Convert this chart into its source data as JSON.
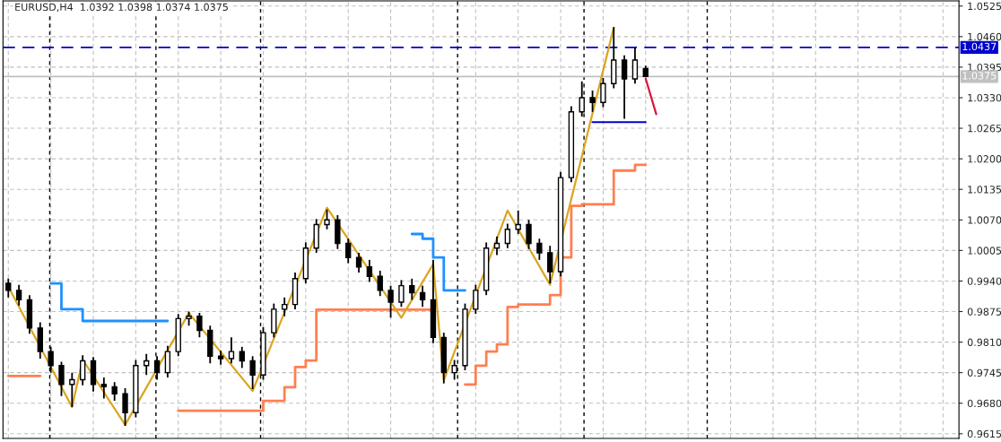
{
  "chart_data": {
    "type": "candlestick",
    "title": "EURUSD,H4  1.0392 1.0398 1.0374 1.0375",
    "categories": [
      null,
      null,
      null,
      null,
      null,
      null,
      null,
      null,
      null,
      null,
      null,
      null,
      null,
      null,
      null,
      null,
      null,
      null,
      null,
      null,
      null,
      null,
      null,
      null,
      null,
      null,
      null,
      null,
      null,
      null,
      null,
      null,
      null,
      null,
      null,
      null,
      null,
      null,
      null,
      null,
      null,
      null,
      null,
      null,
      null,
      null,
      null,
      null,
      null,
      null,
      null,
      null,
      null,
      null,
      null,
      null,
      null,
      null,
      null,
      null,
      null,
      null,
      null,
      null,
      null,
      null,
      null,
      null,
      null,
      null,
      null,
      null,
      null,
      null,
      null,
      null,
      null,
      null,
      null,
      null,
      null,
      null,
      null,
      null,
      null,
      null,
      null,
      null,
      null,
      null
    ],
    "ohlc": [
      [
        0.9935,
        0.9945,
        0.9905,
        0.992
      ],
      [
        0.992,
        0.9932,
        0.9888,
        0.99
      ],
      [
        0.99,
        0.991,
        0.9828,
        0.984
      ],
      [
        0.984,
        0.9852,
        0.9775,
        0.979
      ],
      [
        0.979,
        0.98,
        0.9745,
        0.976
      ],
      [
        0.976,
        0.9768,
        0.9695,
        0.972
      ],
      [
        0.972,
        0.9745,
        0.9672,
        0.973
      ],
      [
        0.973,
        0.9782,
        0.9718,
        0.977
      ],
      [
        0.977,
        0.9778,
        0.9705,
        0.972
      ],
      [
        0.972,
        0.9735,
        0.969,
        0.9715
      ],
      [
        0.9715,
        0.9725,
        0.9685,
        0.97
      ],
      [
        0.97,
        0.9712,
        0.9632,
        0.966
      ],
      [
        0.966,
        0.9772,
        0.965,
        0.976
      ],
      [
        0.976,
        0.9785,
        0.974,
        0.977
      ],
      [
        0.977,
        0.978,
        0.973,
        0.9745
      ],
      [
        0.9745,
        0.9802,
        0.9735,
        0.979
      ],
      [
        0.979,
        0.987,
        0.978,
        0.986
      ],
      [
        0.986,
        0.9875,
        0.9845,
        0.9865
      ],
      [
        0.9865,
        0.9872,
        0.982,
        0.9835
      ],
      [
        0.9835,
        0.9845,
        0.9765,
        0.978
      ],
      [
        0.978,
        0.9792,
        0.9762,
        0.9775
      ],
      [
        0.9775,
        0.982,
        0.9765,
        0.979
      ],
      [
        0.979,
        0.98,
        0.9755,
        0.977
      ],
      [
        0.977,
        0.978,
        0.971,
        0.974
      ],
      [
        0.974,
        0.9842,
        0.973,
        0.983
      ],
      [
        0.983,
        0.9892,
        0.982,
        0.988
      ],
      [
        0.988,
        0.9905,
        0.9865,
        0.989
      ],
      [
        0.989,
        0.9958,
        0.988,
        0.9945
      ],
      [
        0.9945,
        1.0022,
        0.9935,
        1.001
      ],
      [
        1.001,
        1.0072,
        1.0,
        1.006
      ],
      [
        1.006,
        1.0092,
        1.005,
        1.007
      ],
      [
        1.007,
        1.008,
        1.0008,
        1.002
      ],
      [
        1.002,
        1.003,
        0.9978,
        0.999
      ],
      [
        0.999,
        1.0,
        0.9958,
        0.997
      ],
      [
        0.997,
        0.9985,
        0.9938,
        0.995
      ],
      [
        0.995,
        0.9962,
        0.9908,
        0.992
      ],
      [
        0.992,
        0.993,
        0.9862,
        0.9895
      ],
      [
        0.9895,
        0.9942,
        0.9885,
        0.993
      ],
      [
        0.993,
        0.9945,
        0.99,
        0.9915
      ],
      [
        0.9915,
        0.993,
        0.9885,
        0.99
      ],
      [
        0.99,
        0.9985,
        0.9808,
        0.982
      ],
      [
        0.982,
        0.983,
        0.9722,
        0.9745
      ],
      [
        0.9745,
        0.9772,
        0.973,
        0.976
      ],
      [
        0.976,
        0.9892,
        0.975,
        0.988
      ],
      [
        0.988,
        0.9932,
        0.987,
        0.992
      ],
      [
        0.992,
        1.0022,
        0.991,
        1.001
      ],
      [
        1.001,
        1.0035,
        0.9995,
        1.002
      ],
      [
        1.002,
        1.0062,
        1.001,
        1.005
      ],
      [
        1.005,
        1.009,
        1.004,
        1.006
      ],
      [
        1.006,
        1.007,
        1.0008,
        1.002
      ],
      [
        1.002,
        1.003,
        0.9985,
        1.0
      ],
      [
        1.0,
        1.0015,
        0.9935,
        0.996
      ],
      [
        0.996,
        1.0172,
        0.995,
        1.016
      ],
      [
        1.016,
        1.0312,
        1.015,
        1.03
      ],
      [
        1.03,
        1.0365,
        1.029,
        1.033
      ],
      [
        1.033,
        1.0345,
        1.03,
        1.032
      ],
      [
        1.032,
        1.0372,
        1.031,
        1.036
      ],
      [
        1.036,
        1.048,
        1.035,
        1.041
      ],
      [
        1.041,
        1.042,
        1.0285,
        1.037
      ],
      [
        1.037,
        1.0437,
        1.036,
        1.041
      ],
      [
        1.0392,
        1.0398,
        1.0374,
        1.0375
      ],
      null,
      null,
      null,
      null,
      null,
      null,
      null,
      null,
      null,
      null,
      null,
      null,
      null,
      null,
      null,
      null,
      null,
      null,
      null,
      null,
      null,
      null,
      null,
      null,
      null,
      null,
      null,
      null,
      null
    ],
    "series": [
      {
        "type": "step",
        "color": "#1e90ff",
        "values": [
          null,
          null,
          null,
          null,
          0.9935,
          0.988,
          0.988,
          0.9855,
          0.9855,
          0.9855,
          0.9855,
          0.9855,
          0.9855,
          0.9855,
          0.9855,
          0.9855,
          null,
          null,
          null,
          null,
          null,
          null,
          null,
          null,
          null,
          null,
          null,
          null,
          null,
          null,
          null,
          null,
          null,
          null,
          null,
          null,
          null,
          null,
          null,
          null,
          null,
          null,
          null,
          null,
          null,
          null,
          null,
          null,
          null,
          null,
          null,
          null,
          null,
          null,
          null,
          null,
          null,
          null,
          null,
          null,
          null,
          null,
          null,
          null,
          null,
          null,
          null,
          null,
          null,
          null,
          null,
          null,
          null,
          null,
          null,
          null,
          null,
          null,
          null,
          null,
          null,
          null,
          null,
          null,
          null,
          null,
          null,
          null,
          null,
          null
        ]
      },
      {
        "type": "step",
        "color": "#1e90ff",
        "values": [
          null,
          null,
          null,
          null,
          null,
          null,
          null,
          null,
          null,
          null,
          null,
          null,
          null,
          null,
          null,
          null,
          null,
          null,
          null,
          null,
          null,
          null,
          null,
          null,
          null,
          null,
          null,
          null,
          null,
          null,
          null,
          null,
          null,
          null,
          null,
          null,
          null,
          null,
          1.004,
          1.003,
          0.999,
          0.992,
          0.992,
          0.992,
          null,
          null,
          null,
          null,
          null,
          null,
          null,
          null,
          null,
          null,
          null,
          null,
          null,
          null,
          null,
          null,
          null,
          null,
          null,
          null,
          null,
          null,
          null,
          null,
          null,
          null,
          null,
          null,
          null,
          null,
          null,
          null,
          null,
          null,
          null,
          null,
          null,
          null,
          null,
          null,
          null,
          null,
          null,
          null,
          null,
          null
        ]
      },
      {
        "type": "step",
        "color": "#ff7f50",
        "values": [
          0.9738,
          0.9738,
          0.9738,
          0.9738,
          null,
          null,
          null,
          null,
          null,
          null,
          null,
          null,
          null,
          null,
          null,
          null,
          null,
          null,
          null,
          null,
          null,
          null,
          null,
          null,
          null,
          null,
          null,
          null,
          null,
          null,
          null,
          null,
          null,
          null,
          null,
          null,
          null,
          null,
          null,
          null,
          null,
          null,
          null,
          null,
          null,
          null,
          null,
          null,
          null,
          null,
          null,
          null,
          null,
          null,
          null,
          null,
          null,
          null,
          null,
          null,
          null,
          null,
          null,
          null,
          null,
          null,
          null,
          null,
          null,
          null,
          null,
          null,
          null,
          null,
          null,
          null,
          null,
          null,
          null,
          null,
          null,
          null,
          null,
          null,
          null,
          null,
          null,
          null,
          null,
          null
        ]
      },
      {
        "type": "step",
        "color": "#ff7f50",
        "values": [
          null,
          null,
          null,
          null,
          null,
          null,
          null,
          null,
          null,
          null,
          null,
          null,
          null,
          null,
          null,
          null,
          0.9664,
          0.9664,
          0.9664,
          0.9664,
          0.9664,
          0.9664,
          0.9664,
          0.9664,
          0.9685,
          0.9685,
          0.9714,
          0.9757,
          0.9771,
          0.9879,
          0.9879,
          0.9879,
          0.9879,
          0.9879,
          0.9879,
          0.9879,
          0.9879,
          0.9879,
          0.9879,
          0.9879,
          0.9879,
          null,
          null,
          null,
          null,
          null,
          null,
          null,
          null,
          null,
          null,
          null,
          null,
          null,
          null,
          null,
          null,
          null,
          null,
          null,
          null,
          null,
          null,
          null,
          null,
          null,
          null,
          null,
          null,
          null,
          null,
          null,
          null,
          null,
          null,
          null,
          null,
          null,
          null,
          null,
          null,
          null,
          null,
          null,
          null,
          null,
          null,
          null,
          null,
          null
        ]
      },
      {
        "type": "step",
        "color": "#ff7f50",
        "values": [
          null,
          null,
          null,
          null,
          null,
          null,
          null,
          null,
          null,
          null,
          null,
          null,
          null,
          null,
          null,
          null,
          null,
          null,
          null,
          null,
          null,
          null,
          null,
          null,
          null,
          null,
          null,
          null,
          null,
          null,
          null,
          null,
          null,
          null,
          null,
          null,
          null,
          null,
          null,
          null,
          null,
          null,
          null,
          0.972,
          0.976,
          0.979,
          0.9805,
          0.9885,
          0.989,
          0.989,
          0.989,
          0.991,
          0.999,
          1.01,
          1.0103,
          1.0103,
          1.0103,
          1.0175,
          1.0175,
          1.0187,
          1.0187,
          null,
          null,
          null,
          null,
          null,
          null,
          null,
          null,
          null,
          null,
          null,
          null,
          null,
          null,
          null,
          null,
          null,
          null,
          null,
          null,
          null,
          null,
          null,
          null,
          null,
          null,
          null,
          null,
          null
        ]
      },
      {
        "type": "line",
        "color": "#daa520",
        "values": [
          0.9928,
          null,
          null,
          null,
          null,
          null,
          0.9672,
          0.9773,
          null,
          null,
          null,
          0.9634,
          null,
          null,
          null,
          null,
          null,
          0.9872,
          null,
          null,
          null,
          null,
          null,
          0.9706,
          null,
          null,
          null,
          null,
          null,
          null,
          1.0096,
          null,
          null,
          null,
          null,
          null,
          null,
          0.9862,
          null,
          null,
          0.9976,
          0.9729,
          null,
          null,
          null,
          null,
          null,
          1.009,
          null,
          null,
          null,
          0.9932,
          null,
          null,
          null,
          null,
          null,
          1.0479,
          null,
          null,
          null,
          null,
          null,
          null,
          null,
          null,
          null,
          null,
          null,
          null,
          null,
          null,
          null,
          null,
          null,
          null,
          null,
          null,
          null,
          null,
          null,
          null,
          null,
          null,
          null,
          null,
          null,
          null,
          null,
          null
        ]
      },
      {
        "type": "line",
        "color": "#0000cd",
        "values": [
          null,
          null,
          null,
          null,
          null,
          null,
          null,
          null,
          null,
          null,
          null,
          null,
          null,
          null,
          null,
          null,
          null,
          null,
          null,
          null,
          null,
          null,
          null,
          null,
          null,
          null,
          null,
          null,
          null,
          null,
          null,
          null,
          null,
          null,
          null,
          null,
          null,
          null,
          null,
          null,
          null,
          null,
          null,
          null,
          null,
          null,
          null,
          null,
          null,
          null,
          null,
          null,
          null,
          null,
          null,
          1.0278,
          1.0278,
          1.0278,
          1.0278,
          1.0278,
          1.0278,
          null,
          null,
          null,
          null,
          null,
          null,
          null,
          null,
          null,
          null,
          null,
          null,
          null,
          null,
          null,
          null,
          null,
          null,
          null,
          null,
          null,
          null,
          null,
          null,
          null,
          null,
          null,
          null,
          null
        ]
      },
      {
        "type": "line",
        "color": "#dc143c",
        "values": [
          null,
          null,
          null,
          null,
          null,
          null,
          null,
          null,
          null,
          null,
          null,
          null,
          null,
          null,
          null,
          null,
          null,
          null,
          null,
          null,
          null,
          null,
          null,
          null,
          null,
          null,
          null,
          null,
          null,
          null,
          null,
          null,
          null,
          null,
          null,
          null,
          null,
          null,
          null,
          null,
          null,
          null,
          null,
          null,
          null,
          null,
          null,
          null,
          null,
          null,
          null,
          null,
          null,
          null,
          null,
          null,
          null,
          null,
          null,
          null,
          1.0371,
          1.0295,
          null,
          null,
          null,
          null,
          null,
          null,
          null,
          null,
          null,
          null,
          null,
          null,
          null,
          null,
          null,
          null,
          null,
          null,
          null,
          null,
          null,
          null,
          null,
          null,
          null,
          null,
          null,
          null
        ]
      }
    ],
    "ref_lines": [
      {
        "axis": "y",
        "value": 1.0437,
        "label": "1.0437",
        "color": "#0000cd",
        "line_style": "dashed"
      },
      {
        "axis": "y",
        "value": 1.0375,
        "label": "1.0375",
        "color": "#c0c0c0",
        "line_style": "solid"
      }
    ],
    "ylim": [
      0.9605,
      1.0536
    ],
    "yticks": [
      0.9615,
      {
        "value": 0.968,
        "label": "0.9680"
      },
      0.9745,
      {
        "value": 0.981,
        "label": "0.9810"
      },
      0.9875,
      {
        "value": 0.994,
        "label": "0.9940"
      },
      1.0005,
      {
        "value": 1.007,
        "label": "1.0070"
      },
      1.0135,
      {
        "value": 1.02,
        "label": "1.0200"
      },
      1.0265,
      {
        "value": 1.033,
        "label": "1.0330"
      },
      1.0395,
      {
        "value": 1.046,
        "label": "1.0460"
      },
      1.0525
    ],
    "grid": true,
    "tick_labels": "y"
  }
}
